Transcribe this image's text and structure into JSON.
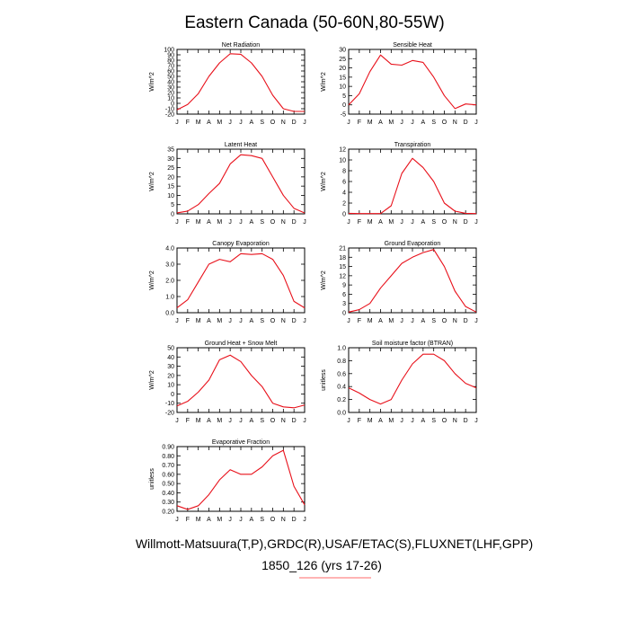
{
  "title": "Eastern Canada (50-60N,80-55W)",
  "footer_line1": "Willmott-Matsuura(T,P),GRDC(R),USAF/ETAC(S),FLUXNET(LHF,GPP)",
  "footer_line2": "1850_126 (yrs 17-26)",
  "colors": {
    "series": "#e8101a",
    "axis": "#000000",
    "footer_underline": "#ff6a6a"
  },
  "chart_data": [
    {
      "type": "line",
      "title": "Net Radiation",
      "ylabel": "W/m^2",
      "categories": [
        "J",
        "F",
        "M",
        "A",
        "M",
        "J",
        "J",
        "A",
        "S",
        "O",
        "N",
        "D",
        "J"
      ],
      "ylim": [
        -20,
        100
      ],
      "yticks": [
        -20,
        -10,
        0,
        10,
        20,
        30,
        40,
        50,
        60,
        70,
        80,
        90,
        100
      ],
      "ytick_labels": [
        "-20",
        "-10",
        "0",
        "10",
        "20",
        "30",
        "40",
        "50",
        "60",
        "70",
        "80",
        "90",
        "100"
      ],
      "values": [
        -12,
        -2,
        18,
        50,
        75,
        92,
        91,
        75,
        50,
        15,
        -10,
        -15,
        -15
      ]
    },
    {
      "type": "line",
      "title": "Sensible Heat",
      "ylabel": "W/m^2",
      "categories": [
        "J",
        "F",
        "M",
        "A",
        "M",
        "J",
        "J",
        "A",
        "S",
        "O",
        "N",
        "D",
        "J"
      ],
      "ylim": [
        -5,
        30
      ],
      "yticks": [
        -5,
        0,
        5,
        10,
        15,
        20,
        25,
        30
      ],
      "ytick_labels": [
        "-5",
        "0",
        "5",
        "10",
        "15",
        "20",
        "25",
        "30"
      ],
      "values": [
        0,
        6,
        18,
        27,
        22,
        21.5,
        24,
        23,
        15,
        5,
        -2,
        0.5,
        0
      ]
    },
    {
      "type": "line",
      "title": "Latent Heat",
      "ylabel": "W/m^2",
      "categories": [
        "J",
        "F",
        "M",
        "A",
        "M",
        "J",
        "J",
        "A",
        "S",
        "O",
        "N",
        "D",
        "J"
      ],
      "ylim": [
        0,
        35
      ],
      "yticks": [
        0,
        5,
        10,
        15,
        20,
        25,
        30,
        35
      ],
      "ytick_labels": [
        "0",
        "5",
        "10",
        "15",
        "20",
        "25",
        "30",
        "35"
      ],
      "values": [
        0.5,
        1.5,
        5,
        11,
        16.5,
        27,
        32,
        31.5,
        30,
        20,
        10,
        3,
        0.5
      ]
    },
    {
      "type": "line",
      "title": "Transpiration",
      "ylabel": "W/m^2",
      "categories": [
        "J",
        "F",
        "M",
        "A",
        "M",
        "J",
        "J",
        "A",
        "S",
        "O",
        "N",
        "D",
        "J"
      ],
      "ylim": [
        0,
        12
      ],
      "yticks": [
        0,
        2,
        4,
        6,
        8,
        10,
        12
      ],
      "ytick_labels": [
        "0",
        "2",
        "4",
        "6",
        "8",
        "10",
        "12"
      ],
      "values": [
        0.1,
        0.05,
        0.05,
        0.05,
        1.5,
        7.5,
        10.3,
        8.6,
        6,
        2,
        0.5,
        0.1,
        0.05
      ]
    },
    {
      "type": "line",
      "title": "Canopy Evaporation",
      "ylabel": "W/m^2",
      "categories": [
        "J",
        "F",
        "M",
        "A",
        "M",
        "J",
        "J",
        "A",
        "S",
        "O",
        "N",
        "D",
        "J"
      ],
      "ylim": [
        0,
        4
      ],
      "yticks": [
        0,
        1,
        2,
        3,
        4
      ],
      "ytick_labels": [
        "0.0",
        "1.0",
        "2.0",
        "3.0",
        "4.0"
      ],
      "values": [
        0.3,
        0.8,
        1.9,
        3.0,
        3.3,
        3.15,
        3.65,
        3.6,
        3.65,
        3.3,
        2.3,
        0.7,
        0.3
      ]
    },
    {
      "type": "line",
      "title": "Ground Evaporation",
      "ylabel": "W/m^2",
      "categories": [
        "J",
        "F",
        "M",
        "A",
        "M",
        "J",
        "J",
        "A",
        "S",
        "O",
        "N",
        "D",
        "J"
      ],
      "ylim": [
        0,
        21
      ],
      "yticks": [
        0,
        3,
        6,
        9,
        12,
        15,
        18,
        21
      ],
      "ytick_labels": [
        "0",
        "3",
        "6",
        "9",
        "12",
        "15",
        "18",
        "21"
      ],
      "values": [
        0.2,
        1,
        3,
        8,
        12,
        16,
        18,
        19.5,
        20.5,
        15,
        7,
        2,
        0.2
      ]
    },
    {
      "type": "line",
      "title": "Ground Heat + Snow Melt",
      "ylabel": "W/m^2",
      "categories": [
        "J",
        "F",
        "M",
        "A",
        "M",
        "J",
        "J",
        "A",
        "S",
        "O",
        "N",
        "D",
        "J"
      ],
      "ylim": [
        -20,
        50
      ],
      "yticks": [
        -20,
        -10,
        0,
        10,
        20,
        30,
        40,
        50
      ],
      "ytick_labels": [
        "-20",
        "-10",
        "0",
        "10",
        "20",
        "30",
        "40",
        "50"
      ],
      "values": [
        -13,
        -8,
        2,
        15,
        37,
        42,
        35,
        20,
        8,
        -10,
        -14,
        -15,
        -12
      ]
    },
    {
      "type": "line",
      "title": "Soil moisture factor (BTRAN)",
      "ylabel": "unitless",
      "categories": [
        "J",
        "F",
        "M",
        "A",
        "M",
        "J",
        "J",
        "A",
        "S",
        "O",
        "N",
        "D",
        "J"
      ],
      "ylim": [
        0,
        1
      ],
      "yticks": [
        0,
        0.2,
        0.4,
        0.6,
        0.8,
        1.0
      ],
      "ytick_labels": [
        "0.0",
        "0.2",
        "0.4",
        "0.6",
        "0.8",
        "1.0"
      ],
      "values": [
        0.38,
        0.3,
        0.2,
        0.13,
        0.2,
        0.5,
        0.75,
        0.9,
        0.9,
        0.8,
        0.6,
        0.45,
        0.38
      ]
    },
    {
      "type": "line",
      "title": "Evaporative Fraction",
      "ylabel": "unitless",
      "categories": [
        "J",
        "F",
        "M",
        "A",
        "M",
        "J",
        "J",
        "A",
        "S",
        "O",
        "N",
        "D",
        "J"
      ],
      "ylim": [
        0.2,
        0.9
      ],
      "yticks": [
        0.2,
        0.3,
        0.4,
        0.5,
        0.6,
        0.7,
        0.8,
        0.9
      ],
      "ytick_labels": [
        "0.20",
        "0.30",
        "0.40",
        "0.50",
        "0.60",
        "0.70",
        "0.80",
        "0.90"
      ],
      "values": [
        0.26,
        0.22,
        0.26,
        0.38,
        0.54,
        0.65,
        0.6,
        0.6,
        0.68,
        0.8,
        0.86,
        0.47,
        0.27
      ]
    }
  ]
}
